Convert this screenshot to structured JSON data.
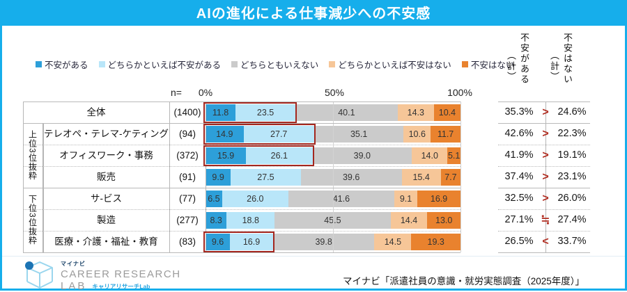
{
  "title": "AIの進化による仕事減少への不安感",
  "accent_color": "#16aeeb",
  "axis": {
    "n_label": "n=",
    "ticks": [
      {
        "label": "0%",
        "pct": 0
      },
      {
        "label": "50%",
        "pct": 50
      },
      {
        "label": "100%",
        "pct": 100
      }
    ]
  },
  "summary_columns": [
    {
      "main": "不安がある",
      "sub": "（計）"
    },
    {
      "main": "不安はない",
      "sub": "（計）"
    }
  ],
  "groups": [
    {
      "label": "上位3位抜粋",
      "start_row": 1,
      "end_row": 3
    },
    {
      "label": "下位3位抜粋",
      "start_row": 4,
      "end_row": 6
    }
  ],
  "chart_data": {
    "type": "bar",
    "stacked": true,
    "orientation": "horizontal",
    "title": "AIの進化による仕事減少への不安感",
    "categories": [
      "全体",
      "テレオペ・テレマ-ケティング",
      "オフィスワーク・事務",
      "販売",
      "サ-ビス",
      "製造",
      "医療・介護・福祉・教育"
    ],
    "n_values": [
      "(1400)",
      "(94)",
      "(372)",
      "(91)",
      "(77)",
      "(277)",
      "(83)"
    ],
    "series": [
      {
        "name": "不安がある",
        "color": "#2d9fd9",
        "values": [
          11.8,
          14.9,
          15.9,
          9.9,
          6.5,
          8.3,
          9.6
        ]
      },
      {
        "name": "どちらかといえば不安がある",
        "color": "#b9e6f9",
        "values": [
          23.5,
          27.7,
          26.1,
          27.5,
          26.0,
          18.8,
          16.9
        ]
      },
      {
        "name": "どちらともいえない",
        "color": "#cbcbcb",
        "values": [
          40.1,
          35.1,
          39.0,
          39.6,
          41.6,
          45.5,
          39.8
        ]
      },
      {
        "name": "どちらかといえば不安はない",
        "color": "#f6c698",
        "values": [
          14.3,
          10.6,
          14.0,
          15.4,
          9.1,
          14.4,
          14.5
        ]
      },
      {
        "name": "不安はない",
        "color": "#e9822e",
        "values": [
          10.4,
          11.7,
          5.1,
          7.7,
          16.9,
          13.0,
          19.3
        ]
      }
    ],
    "highlight_rows": [
      0,
      1,
      2,
      6
    ],
    "highlight_color": "#a3271f",
    "xlim": [
      0,
      100
    ],
    "gridlines_pct": [
      50,
      100
    ]
  },
  "summary": {
    "anxious_total": [
      "35.3%",
      "42.6%",
      "41.9%",
      "37.4%",
      "32.5%",
      "27.1%",
      "26.5%"
    ],
    "comparison": [
      ">",
      ">",
      ">",
      ">",
      ">",
      "≒",
      "<"
    ],
    "not_anxious_total": [
      "24.6%",
      "22.3%",
      "19.1%",
      "23.1%",
      "26.0%",
      "27.4%",
      "33.7%"
    ],
    "symbol_color": "#b02c20"
  },
  "footer": {
    "logo": {
      "brand_small": "マイナビ",
      "line1": "CAREER RESEARCH",
      "line2": "LAB",
      "line2_sub": "キャリアリサーチLab"
    },
    "source": "マイナビ「派遣社員の意識・就労実態調査（2025年度）」"
  }
}
